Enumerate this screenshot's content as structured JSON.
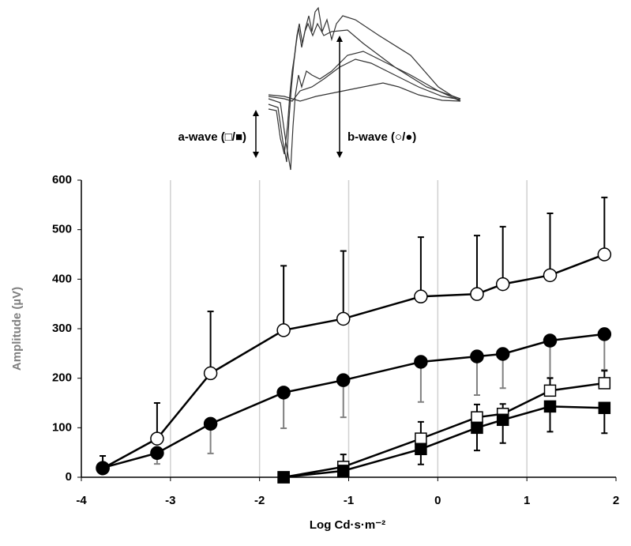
{
  "chart_data": {
    "type": "line",
    "x_label": "Log Cd·s·m⁻²",
    "y_label": "Amplitude (µV)",
    "annotations": [
      "a-wave (□/■)",
      "b-wave (○/●)"
    ],
    "xlim": [
      -4,
      2
    ],
    "xticks": [
      -4,
      -3,
      -2,
      -1,
      0,
      1,
      2
    ],
    "ylim": [
      0,
      600
    ],
    "yticks": [
      0,
      100,
      200,
      300,
      400,
      500,
      600
    ],
    "grid": "x",
    "series": [
      {
        "color": "#000000",
        "marker": "circle",
        "filled": false,
        "error_direction": "up",
        "error_color": "#000000",
        "x": [
          -3.76,
          -3.15,
          -2.55,
          -1.73,
          -1.06,
          -0.19,
          0.44,
          0.73,
          1.26,
          1.87
        ],
        "values": [
          18,
          78,
          210,
          297,
          320,
          365,
          370,
          390,
          408,
          450
        ],
        "errors": [
          25,
          72,
          125,
          130,
          137,
          120,
          118,
          116,
          125,
          115
        ]
      },
      {
        "color": "#000000",
        "marker": "circle",
        "filled": true,
        "error_direction": "down",
        "error_color": "#808080",
        "x": [
          -3.76,
          -3.15,
          -2.55,
          -1.73,
          -1.06,
          -0.19,
          0.44,
          0.73,
          1.26,
          1.87
        ],
        "values": [
          19,
          49,
          108,
          171,
          196,
          233,
          244,
          249,
          276,
          289
        ],
        "errors": [
          10,
          22,
          60,
          72,
          75,
          81,
          78,
          69,
          75,
          72
        ]
      },
      {
        "color": "#000000",
        "marker": "square",
        "filled": false,
        "error_direction": "up",
        "error_color": "#000000",
        "x": [
          -1.73,
          -1.06,
          -0.19,
          0.44,
          0.73,
          1.26,
          1.87
        ],
        "values": [
          0,
          21,
          78,
          121,
          128,
          175,
          190
        ],
        "errors": [
          10,
          25,
          34,
          26,
          20,
          25,
          25
        ]
      },
      {
        "color": "#000000",
        "marker": "square",
        "filled": true,
        "error_direction": "down",
        "error_color": "#000000",
        "x": [
          -1.73,
          -1.06,
          -0.19,
          0.44,
          0.73,
          1.26,
          1.87
        ],
        "values": [
          0,
          13,
          57,
          100,
          116,
          143,
          140
        ],
        "errors": [
          5,
          8,
          31,
          46,
          47,
          51,
          51
        ]
      }
    ]
  }
}
